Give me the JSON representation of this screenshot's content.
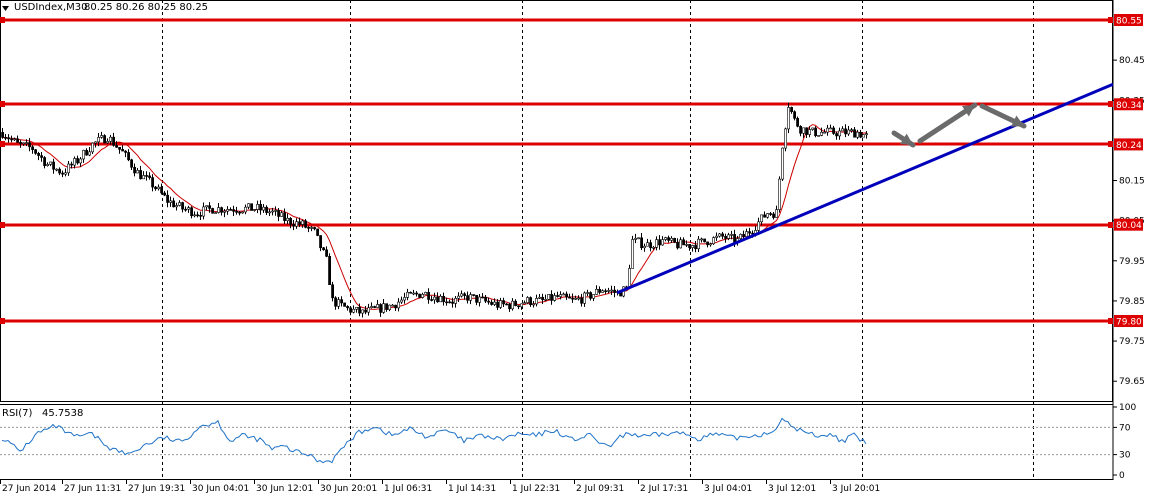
{
  "header": {
    "symbol": "USDIndex,M30",
    "ohlc": "80.25 80.26 80.25 80.25"
  },
  "rsi_header": {
    "label": "RSI(7)",
    "value": "45.7538"
  },
  "colors": {
    "level": "#dd0000",
    "trend": "#0000bb",
    "arrow": "#6b6b6b",
    "ma": "#cc0000",
    "rsi": "#1e72c8",
    "grid": "#000000"
  },
  "chart_data": {
    "type": "candlestick",
    "y_ticks": [
      "80.45",
      "80.35",
      "80.15",
      "80.05",
      "79.95",
      "79.85",
      "79.75",
      "79.65"
    ],
    "x_ticks": [
      "27 Jun 2014",
      "27 Jun 11:31",
      "27 Jun 19:31",
      "30 Jun 04:01",
      "30 Jun 12:01",
      "30 Jun 20:01",
      "1 Jul 06:31",
      "1 Jul 14:31",
      "1 Jul 22:31",
      "2 Jul 09:31",
      "2 Jul 17:31",
      "3 Jul 04:01",
      "3 Jul 12:01",
      "3 Jul 20:01"
    ],
    "levels": [
      {
        "label": "80.55",
        "value": 80.55
      },
      {
        "label": "80.34",
        "value": 80.34
      },
      {
        "label": "80.24",
        "value": 80.24
      },
      {
        "label": "80.04",
        "value": 80.04
      },
      {
        "label": "79.80",
        "value": 79.8
      }
    ],
    "price_key": [
      [
        0,
        80.27
      ],
      [
        5,
        80.24
      ],
      [
        10,
        80.23
      ],
      [
        15,
        80.19
      ],
      [
        20,
        80.17
      ],
      [
        25,
        80.2
      ],
      [
        30,
        80.24
      ],
      [
        35,
        80.26
      ],
      [
        40,
        80.22
      ],
      [
        45,
        80.17
      ],
      [
        50,
        80.14
      ],
      [
        55,
        80.1
      ],
      [
        60,
        80.08
      ],
      [
        65,
        80.07
      ],
      [
        70,
        80.08
      ],
      [
        75,
        80.08
      ],
      [
        80,
        80.08
      ],
      [
        85,
        80.08
      ],
      [
        90,
        80.07
      ],
      [
        95,
        80.05
      ],
      [
        100,
        80.04
      ],
      [
        104,
        80.02
      ],
      [
        108,
        79.95
      ],
      [
        110,
        79.85
      ],
      [
        115,
        79.83
      ],
      [
        120,
        79.82
      ],
      [
        125,
        79.83
      ],
      [
        130,
        79.84
      ],
      [
        135,
        79.86
      ],
      [
        140,
        79.87
      ],
      [
        145,
        79.86
      ],
      [
        150,
        79.85
      ],
      [
        155,
        79.86
      ],
      [
        160,
        79.85
      ],
      [
        165,
        79.84
      ],
      [
        170,
        79.84
      ],
      [
        175,
        79.85
      ],
      [
        180,
        79.85
      ],
      [
        185,
        79.86
      ],
      [
        190,
        79.85
      ],
      [
        195,
        79.86
      ],
      [
        200,
        79.88
      ],
      [
        205,
        79.87
      ],
      [
        208,
        79.88
      ],
      [
        210,
        80.0
      ],
      [
        215,
        79.99
      ],
      [
        220,
        80.0
      ],
      [
        225,
        79.99
      ],
      [
        230,
        79.99
      ],
      [
        235,
        80.0
      ],
      [
        240,
        80.01
      ],
      [
        245,
        80.0
      ],
      [
        250,
        80.03
      ],
      [
        255,
        80.07
      ],
      [
        258,
        80.07
      ],
      [
        260,
        80.24
      ],
      [
        262,
        80.34
      ],
      [
        264,
        80.3
      ],
      [
        266,
        80.28
      ],
      [
        270,
        80.27
      ],
      [
        275,
        80.27
      ],
      [
        280,
        80.27
      ],
      [
        285,
        80.27
      ],
      [
        288,
        80.26
      ]
    ],
    "rsi": {
      "period": 7,
      "value": 45.7538,
      "ticks": [
        "100",
        "70",
        "30",
        "0"
      ],
      "levels": [
        70,
        30
      ],
      "key": [
        [
          0,
          55
        ],
        [
          6,
          35
        ],
        [
          12,
          62
        ],
        [
          18,
          72
        ],
        [
          24,
          56
        ],
        [
          30,
          60
        ],
        [
          36,
          40
        ],
        [
          42,
          30
        ],
        [
          48,
          45
        ],
        [
          54,
          55
        ],
        [
          60,
          48
        ],
        [
          66,
          72
        ],
        [
          72,
          78
        ],
        [
          76,
          50
        ],
        [
          80,
          58
        ],
        [
          86,
          52
        ],
        [
          90,
          38
        ],
        [
          94,
          42
        ],
        [
          98,
          34
        ],
        [
          102,
          30
        ],
        [
          106,
          20
        ],
        [
          110,
          22
        ],
        [
          114,
          42
        ],
        [
          118,
          60
        ],
        [
          124,
          72
        ],
        [
          130,
          58
        ],
        [
          136,
          68
        ],
        [
          142,
          56
        ],
        [
          148,
          66
        ],
        [
          154,
          50
        ],
        [
          160,
          58
        ],
        [
          166,
          52
        ],
        [
          172,
          60
        ],
        [
          178,
          58
        ],
        [
          184,
          66
        ],
        [
          190,
          52
        ],
        [
          196,
          58
        ],
        [
          202,
          40
        ],
        [
          208,
          62
        ],
        [
          214,
          56
        ],
        [
          220,
          60
        ],
        [
          226,
          62
        ],
        [
          232,
          54
        ],
        [
          238,
          60
        ],
        [
          244,
          54
        ],
        [
          250,
          58
        ],
        [
          256,
          62
        ],
        [
          260,
          80
        ],
        [
          264,
          70
        ],
        [
          268,
          62
        ],
        [
          272,
          58
        ],
        [
          276,
          60
        ],
        [
          280,
          50
        ],
        [
          284,
          58
        ],
        [
          286,
          52
        ],
        [
          288,
          45.7538
        ]
      ]
    }
  }
}
